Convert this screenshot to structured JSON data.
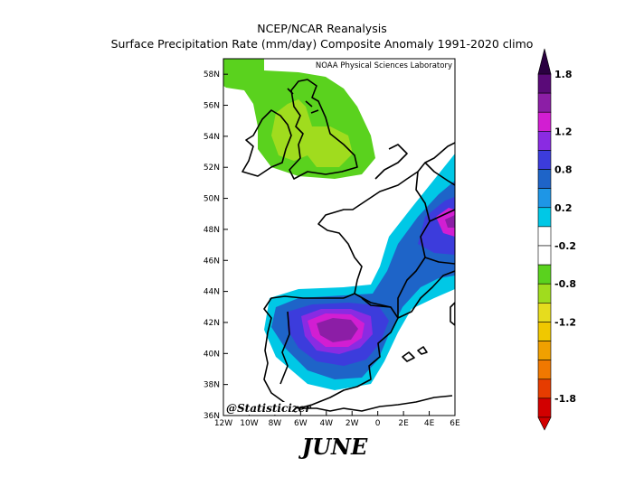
{
  "titles": {
    "line1": "NCEP/NCAR Reanalysis",
    "line2": "Surface Precipitation Rate (mm/day) Composite Anomaly 1991-2020 climo"
  },
  "credit": "NOAA Physical Sciences Laboratory",
  "watermark": "@Statisticizer",
  "month": "JUNE",
  "axes": {
    "lat_labels": [
      "58N",
      "56N",
      "54N",
      "52N",
      "50N",
      "48N",
      "46N",
      "44N",
      "42N",
      "40N",
      "38N",
      "36N"
    ],
    "lon_labels": [
      "12W",
      "10W",
      "8W",
      "6W",
      "4W",
      "2W",
      "0",
      "2E",
      "4E",
      "6E"
    ],
    "lat_range": [
      36,
      59
    ],
    "lon_range": [
      -12,
      6
    ]
  },
  "colorbar": {
    "labels": [
      "1.8",
      "1.2",
      "0.8",
      "0.2",
      "-0.2",
      "-0.8",
      "-1.2",
      "-1.8"
    ],
    "colors_top_to_bottom": [
      "#5a0a78",
      "#8c1ea6",
      "#d21ed2",
      "#8a2be2",
      "#3c3cdc",
      "#1e64c8",
      "#1e96e6",
      "#00c8e6",
      "#ffffff",
      "#ffffff",
      "#5ad21e",
      "#a0dc1e",
      "#e6dc1e",
      "#f0c800",
      "#f0a000",
      "#f07800",
      "#e63c00",
      "#d20000"
    ]
  },
  "colors": {
    "wet_strong": "#8c1ea6",
    "wet_mid": "#3c3cdc",
    "wet_light": "#00c8e6",
    "dry_light": "#5ad21e",
    "dry_mid": "#a0dc1e"
  }
}
